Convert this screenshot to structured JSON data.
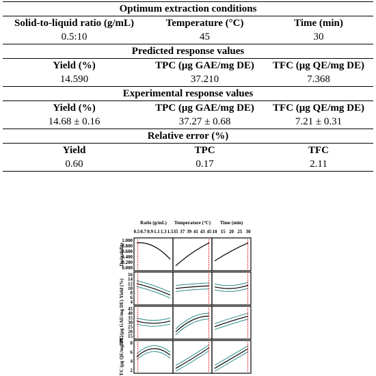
{
  "table": {
    "sections": [
      {
        "title": "Optimum extraction conditions",
        "headers": [
          "Solid-to-liquid ratio (g/mL)",
          "Temperature (°C)",
          "Time (min)"
        ],
        "values": [
          "0.5:10",
          "45",
          "30"
        ]
      },
      {
        "title": "Predicted response values",
        "headers": [
          "Yield (%)",
          "TPC (μg GAE/mg DE)",
          "TFC (μg QE/mg DE)"
        ],
        "values": [
          "14.590",
          "37.210",
          "7.368"
        ]
      },
      {
        "title": "Experimental response values",
        "headers": [
          "Yield (%)",
          "TPC (μg GAE/mg DE)",
          "TFC (μg QE/mg DE)"
        ],
        "values": [
          "14.68 ± 0.16",
          "37.27 ± 0.68",
          "7.21 ± 0.31"
        ]
      },
      {
        "title": "Relative error (%)",
        "headers": [
          "Yield",
          "TPC",
          "TFC"
        ],
        "values": [
          "0.60",
          "0.17",
          "2.11"
        ]
      }
    ]
  },
  "figure": {
    "columns": [
      {
        "label": "Ratio (g/mL)",
        "ticks": [
          "0.5",
          "0.7",
          "0.9",
          "1.1",
          "1.3",
          "1.5"
        ]
      },
      {
        "label": "Temperature (°C)",
        "ticks": [
          "35",
          "37",
          "39",
          "41",
          "43",
          "45"
        ]
      },
      {
        "label": "Time (min)",
        "ticks": [
          "10",
          "15",
          "20",
          "25",
          "30"
        ]
      }
    ],
    "rows": [
      {
        "label": "Desirability",
        "ticks": [
          "1.000",
          "0.800",
          "0.600",
          "0.400",
          "0.200",
          "0.000"
        ]
      },
      {
        "label": "Yield (%)",
        "ticks": [
          "16",
          "14",
          "12",
          "10",
          "8",
          "6",
          "4"
        ]
      },
      {
        "label": "TPC (μg GAE/mg DE)",
        "ticks": [
          "45",
          "40",
          "35",
          "30",
          "25",
          "20",
          "15"
        ]
      },
      {
        "label": "TFC (μg QE/mg DE)",
        "ticks": [
          "8",
          "6",
          "4",
          "2"
        ]
      }
    ]
  }
}
